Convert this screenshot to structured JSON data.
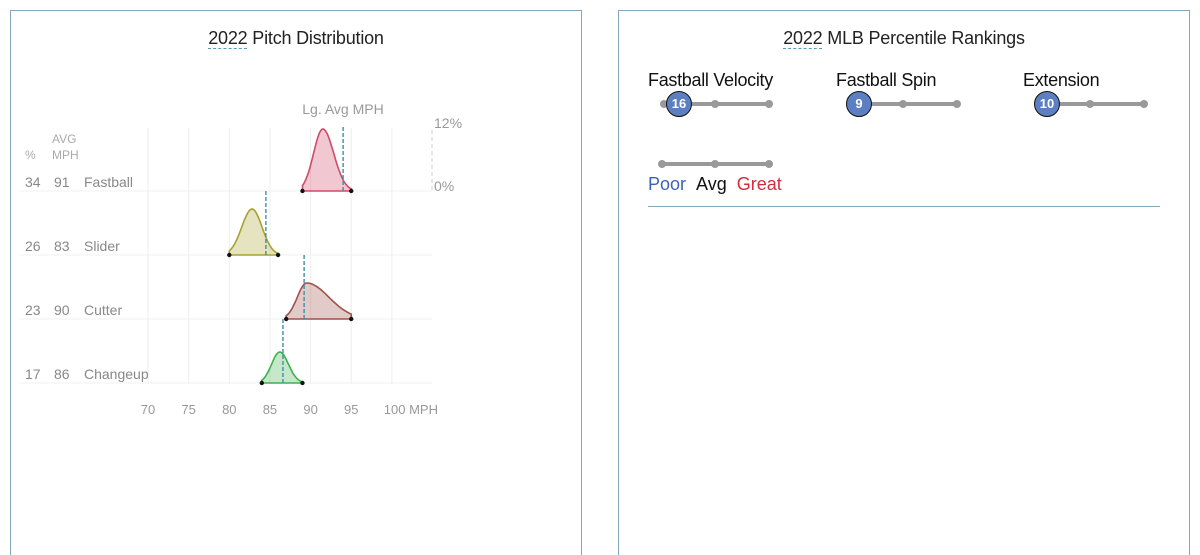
{
  "left_panel": {
    "title_year": "2022",
    "title_rest": " Pitch Distribution",
    "header_pct": "%",
    "header_avg": "AVG",
    "header_mph": "MPH",
    "lg_avg_label": "Lg. Avg MPH",
    "y_top_label": "12%",
    "y_bottom_label": "0%",
    "x_ticks": [
      "70",
      "75",
      "80",
      "85",
      "90",
      "95",
      "100 MPH"
    ]
  },
  "right_panel": {
    "title_year": "2022",
    "title_rest": " MLB Percentile Rankings",
    "metrics": [
      {
        "label": "Fastball Velocity",
        "value": "16"
      },
      {
        "label": "Fastball Spin",
        "value": "9"
      },
      {
        "label": "Extension",
        "value": "10"
      }
    ],
    "legend": {
      "poor": "Poor",
      "avg": "Avg",
      "great": "Great"
    },
    "colors": {
      "poor": "#3c64b4",
      "avg": "#111111",
      "great": "#d22d3c",
      "knob": "#5b7fc0"
    }
  },
  "chart_data": [
    {
      "type": "area",
      "title": "2022 Pitch Distribution",
      "xlabel": "MPH",
      "ylabel": "%",
      "xlim": [
        70,
        100
      ],
      "ylim": [
        0,
        12
      ],
      "x_ticks": [
        70,
        75,
        80,
        85,
        90,
        95,
        100
      ],
      "grid": true,
      "series": [
        {
          "name": "Fastball",
          "usage_pct": 34,
          "avg_mph": 91,
          "min_mph": 89,
          "max_mph": 95,
          "peak_mph": 91.5,
          "league_avg_mph": 94,
          "color": "#d04a6a"
        },
        {
          "name": "Slider",
          "usage_pct": 26,
          "avg_mph": 83,
          "min_mph": 80,
          "max_mph": 86,
          "peak_mph": 82.8,
          "league_avg_mph": 84.5,
          "color": "#a8a230"
        },
        {
          "name": "Cutter",
          "usage_pct": 23,
          "avg_mph": 90,
          "min_mph": 87,
          "max_mph": 95,
          "peak_mph": 89.5,
          "league_avg_mph": 89.2,
          "color": "#a0504a"
        },
        {
          "name": "Changeup",
          "usage_pct": 17,
          "avg_mph": 86,
          "min_mph": 84,
          "max_mph": 89,
          "peak_mph": 86.2,
          "league_avg_mph": 86.6,
          "color": "#3cb44b"
        }
      ],
      "annotations": [
        "Lg. Avg MPH"
      ]
    },
    {
      "type": "table",
      "title": "2022 MLB Percentile Rankings",
      "categories": [
        "Fastball Velocity",
        "Fastball Spin",
        "Extension"
      ],
      "values": [
        16,
        9,
        10
      ],
      "legend": [
        "Poor",
        "Avg",
        "Great"
      ]
    }
  ]
}
